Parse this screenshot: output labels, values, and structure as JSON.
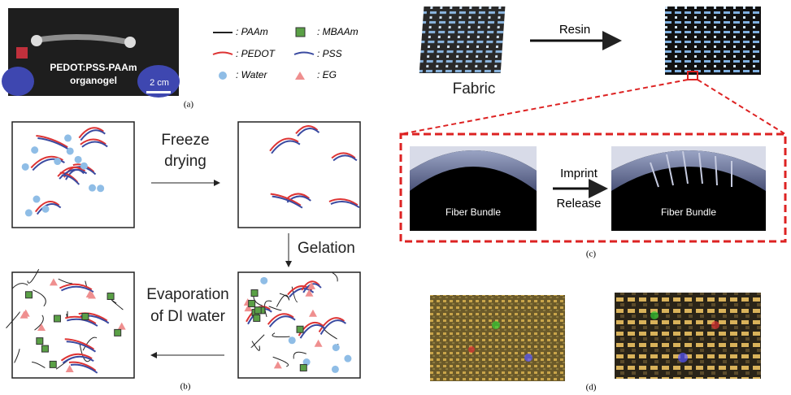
{
  "panel_a": {
    "photo_text": [
      "PEDOT:PSS-PAAm",
      "organogel"
    ],
    "scale_bar": "2 cm",
    "caption": "(a)"
  },
  "legend": [
    ": PAAm",
    ": MBAAm",
    ": PEDOT",
    ": PSS",
    ": Water",
    ": EG"
  ],
  "panel_b": {
    "step1": [
      "Freeze",
      "drying"
    ],
    "step2": "Gelation",
    "step3": [
      "Evaporation",
      "of DI water"
    ],
    "caption": "(b)"
  },
  "panel_c": {
    "fabric": "Fabric",
    "resin": "Resin",
    "imprint": "Imprint",
    "release": "Release",
    "bundle_left": "Fiber Bundle",
    "bundle_right": "Fiber Bundle",
    "caption": "(c)"
  },
  "panel_d": {
    "caption": "(d)"
  }
}
